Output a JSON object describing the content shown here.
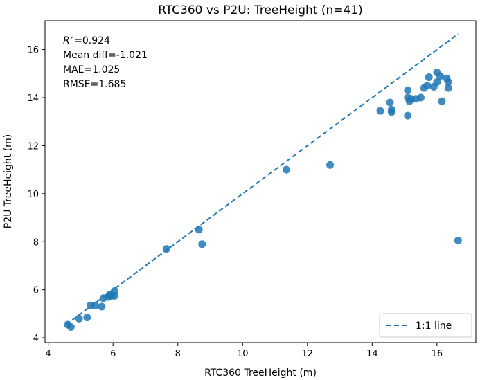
{
  "chart_data": {
    "type": "scatter",
    "title": "RTC360 vs P2U: TreeHeight (n=41)",
    "xlabel": "RTC360 TreeHeight (m)",
    "ylabel": "P2U TreeHeight (m)",
    "xlim": [
      3.9,
      17.2
    ],
    "ylim": [
      3.8,
      17.2
    ],
    "xticks": [
      4,
      6,
      8,
      10,
      12,
      14,
      16
    ],
    "yticks": [
      4,
      6,
      8,
      10,
      12,
      14,
      16
    ],
    "grid": false,
    "point_color": "#1f77b4",
    "line_color": "#1f77b4",
    "points": [
      [
        4.6,
        4.55
      ],
      [
        4.7,
        4.45
      ],
      [
        4.95,
        4.8
      ],
      [
        5.2,
        4.85
      ],
      [
        5.3,
        5.35
      ],
      [
        5.45,
        5.35
      ],
      [
        5.65,
        5.3
      ],
      [
        5.7,
        5.65
      ],
      [
        5.85,
        5.7
      ],
      [
        5.9,
        5.8
      ],
      [
        5.95,
        5.75
      ],
      [
        6.05,
        5.95
      ],
      [
        6.05,
        5.75
      ],
      [
        7.65,
        7.7
      ],
      [
        8.65,
        8.5
      ],
      [
        8.75,
        7.9
      ],
      [
        11.35,
        11.0
      ],
      [
        12.7,
        11.2
      ],
      [
        14.25,
        13.45
      ],
      [
        14.55,
        13.8
      ],
      [
        14.6,
        13.5
      ],
      [
        14.6,
        13.4
      ],
      [
        15.1,
        14.3
      ],
      [
        15.1,
        13.25
      ],
      [
        15.1,
        14.0
      ],
      [
        15.15,
        13.85
      ],
      [
        15.2,
        13.95
      ],
      [
        15.35,
        13.95
      ],
      [
        15.5,
        14.0
      ],
      [
        15.6,
        14.4
      ],
      [
        15.7,
        14.5
      ],
      [
        15.75,
        14.85
      ],
      [
        15.9,
        14.45
      ],
      [
        16.0,
        15.05
      ],
      [
        16.0,
        14.65
      ],
      [
        16.1,
        14.9
      ],
      [
        16.15,
        13.85
      ],
      [
        16.3,
        14.8
      ],
      [
        16.35,
        14.65
      ],
      [
        16.35,
        14.4
      ],
      [
        16.65,
        8.05
      ]
    ],
    "reference_line": {
      "name": "1:1 line",
      "from": [
        4.55,
        4.55
      ],
      "to": [
        16.65,
        16.65
      ]
    },
    "legend_position": "bottom-right",
    "annotation": {
      "r2_label": "R",
      "r2_value": "=0.924",
      "lines": [
        "Mean diff=-1.021",
        "MAE=1.025",
        "RMSE=1.685"
      ]
    }
  }
}
